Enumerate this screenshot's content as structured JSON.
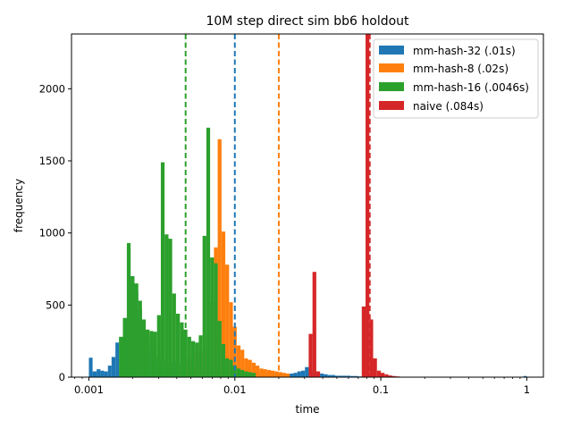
{
  "chart_data": {
    "type": "histogram",
    "title": "10M step direct sim bb6 holdout",
    "xlabel": "time",
    "ylabel": "frequency",
    "xscale": "log",
    "xlim": [
      0.00076,
      1.3
    ],
    "ylim": [
      0,
      2380
    ],
    "x_ticks": [
      {
        "value": 0.001,
        "label": "0.001"
      },
      {
        "value": 0.01,
        "label": "0.01"
      },
      {
        "value": 0.1,
        "label": "0.1"
      },
      {
        "value": 1,
        "label": "1"
      }
    ],
    "y_ticks": [
      {
        "value": 0,
        "label": "0"
      },
      {
        "value": 500,
        "label": "500"
      },
      {
        "value": 1000,
        "label": "1000"
      },
      {
        "value": 1500,
        "label": "1500"
      },
      {
        "value": 2000,
        "label": "2000"
      }
    ],
    "legend_position": "top-right",
    "series": [
      {
        "name": "mm-hash-32 (.01s)",
        "color": "#1f77b4",
        "mean_line": 0.01,
        "bins": [
          [
            0.001,
            0.00106,
            135
          ],
          [
            0.00106,
            0.00113,
            40
          ],
          [
            0.00113,
            0.0012,
            55
          ],
          [
            0.0012,
            0.00127,
            45
          ],
          [
            0.00127,
            0.00135,
            40
          ],
          [
            0.00135,
            0.00143,
            80
          ],
          [
            0.00143,
            0.00152,
            140
          ],
          [
            0.00152,
            0.00161,
            240
          ],
          [
            0.00161,
            0.00171,
            275
          ],
          [
            0.00171,
            0.00182,
            410
          ],
          [
            0.00182,
            0.00193,
            890
          ],
          [
            0.00193,
            0.00205,
            700
          ],
          [
            0.00205,
            0.00218,
            590
          ],
          [
            0.00218,
            0.00231,
            470
          ],
          [
            0.00231,
            0.00245,
            390
          ],
          [
            0.00245,
            0.0026,
            280
          ],
          [
            0.0026,
            0.00276,
            190
          ],
          [
            0.00276,
            0.00293,
            150
          ],
          [
            0.00293,
            0.00311,
            130
          ],
          [
            0.00311,
            0.0033,
            125
          ],
          [
            0.0033,
            0.00351,
            115
          ],
          [
            0.00351,
            0.00372,
            100
          ],
          [
            0.00372,
            0.00395,
            110
          ],
          [
            0.00395,
            0.0042,
            90
          ],
          [
            0.0042,
            0.00446,
            95
          ],
          [
            0.00446,
            0.00473,
            80
          ],
          [
            0.00473,
            0.00502,
            70
          ],
          [
            0.00502,
            0.00533,
            60
          ],
          [
            0.00533,
            0.00566,
            75
          ],
          [
            0.00566,
            0.00601,
            65
          ],
          [
            0.00601,
            0.00638,
            55
          ],
          [
            0.00638,
            0.00677,
            50
          ],
          [
            0.00677,
            0.00719,
            40
          ],
          [
            0.00719,
            0.00763,
            35
          ],
          [
            0.00763,
            0.0081,
            35
          ],
          [
            0.0081,
            0.0086,
            30
          ],
          [
            0.0086,
            0.00913,
            30
          ],
          [
            0.00913,
            0.00969,
            30
          ],
          [
            0.00969,
            0.01029,
            30
          ],
          [
            0.01029,
            0.01093,
            30
          ],
          [
            0.01093,
            0.0116,
            35
          ],
          [
            0.0116,
            0.01231,
            30
          ],
          [
            0.01231,
            0.01307,
            30
          ],
          [
            0.01307,
            0.01388,
            30
          ],
          [
            0.01388,
            0.01473,
            30
          ],
          [
            0.01473,
            0.01564,
            30
          ],
          [
            0.01564,
            0.0166,
            35
          ],
          [
            0.0166,
            0.01763,
            30
          ],
          [
            0.01763,
            0.01871,
            30
          ],
          [
            0.01871,
            0.01987,
            30
          ],
          [
            0.01987,
            0.02109,
            30
          ],
          [
            0.02109,
            0.02239,
            25
          ],
          [
            0.02239,
            0.02377,
            20
          ],
          [
            0.02377,
            0.02524,
            25
          ],
          [
            0.02524,
            0.02679,
            30
          ],
          [
            0.02679,
            0.02844,
            40
          ],
          [
            0.02844,
            0.0302,
            45
          ],
          [
            0.0302,
            0.03206,
            70
          ],
          [
            0.03206,
            0.03404,
            50
          ],
          [
            0.03404,
            0.03613,
            40
          ],
          [
            0.03613,
            0.03836,
            35
          ],
          [
            0.03836,
            0.04072,
            25
          ],
          [
            0.04072,
            0.04323,
            20
          ],
          [
            0.04323,
            0.0459,
            15
          ],
          [
            0.0459,
            0.04873,
            15
          ],
          [
            0.04873,
            0.05173,
            10
          ],
          [
            0.05173,
            0.05492,
            10
          ],
          [
            0.05492,
            0.0583,
            10
          ],
          [
            0.0583,
            0.0619,
            10
          ],
          [
            0.0619,
            0.06571,
            8
          ],
          [
            0.06571,
            0.06976,
            8
          ],
          [
            0.06976,
            0.07406,
            5
          ],
          [
            0.07406,
            0.07862,
            5
          ],
          [
            0.07862,
            0.08347,
            5
          ],
          [
            0.08347,
            0.08861,
            5
          ],
          [
            0.95,
            1.0,
            8
          ]
        ]
      },
      {
        "name": "mm-hash-8 (.02s)",
        "color": "#ff7f0e",
        "mean_line": 0.02,
        "bins": [
          [
            0.0042,
            0.00446,
            60
          ],
          [
            0.00446,
            0.00473,
            100
          ],
          [
            0.00473,
            0.00502,
            130
          ],
          [
            0.00502,
            0.00533,
            160
          ],
          [
            0.00533,
            0.00566,
            170
          ],
          [
            0.00566,
            0.00601,
            180
          ],
          [
            0.00601,
            0.00638,
            190
          ],
          [
            0.00638,
            0.00677,
            250
          ],
          [
            0.00677,
            0.00719,
            520
          ],
          [
            0.00719,
            0.00763,
            900
          ],
          [
            0.00763,
            0.0081,
            1650
          ],
          [
            0.0081,
            0.0086,
            1010
          ],
          [
            0.0086,
            0.00913,
            780
          ],
          [
            0.00913,
            0.00969,
            520
          ],
          [
            0.00969,
            0.01029,
            350
          ],
          [
            0.01029,
            0.01093,
            220
          ],
          [
            0.01093,
            0.0116,
            190
          ],
          [
            0.0116,
            0.01231,
            130
          ],
          [
            0.01231,
            0.01307,
            120
          ],
          [
            0.01307,
            0.01388,
            100
          ],
          [
            0.01388,
            0.01473,
            80
          ],
          [
            0.01473,
            0.01564,
            60
          ],
          [
            0.01564,
            0.0166,
            55
          ],
          [
            0.0166,
            0.01763,
            50
          ],
          [
            0.01763,
            0.01871,
            45
          ],
          [
            0.01871,
            0.01987,
            40
          ],
          [
            0.01987,
            0.02109,
            35
          ],
          [
            0.02109,
            0.02239,
            30
          ],
          [
            0.02239,
            0.02377,
            25
          ]
        ]
      },
      {
        "name": "mm-hash-16 (.0046s)",
        "color": "#2ca02c",
        "mean_line": 0.0046,
        "bins": [
          [
            0.00161,
            0.00171,
            280
          ],
          [
            0.00171,
            0.00182,
            410
          ],
          [
            0.00182,
            0.00193,
            930
          ],
          [
            0.00193,
            0.00205,
            700
          ],
          [
            0.00205,
            0.00218,
            650
          ],
          [
            0.00218,
            0.00231,
            530
          ],
          [
            0.00231,
            0.00245,
            400
          ],
          [
            0.00245,
            0.0026,
            330
          ],
          [
            0.0026,
            0.00276,
            320
          ],
          [
            0.00276,
            0.00293,
            315
          ],
          [
            0.00293,
            0.00311,
            430
          ],
          [
            0.00311,
            0.0033,
            1490
          ],
          [
            0.0033,
            0.00351,
            990
          ],
          [
            0.00351,
            0.00372,
            960
          ],
          [
            0.00372,
            0.00395,
            580
          ],
          [
            0.00395,
            0.0042,
            440
          ],
          [
            0.0042,
            0.00446,
            380
          ],
          [
            0.00446,
            0.00473,
            330
          ],
          [
            0.00473,
            0.00502,
            280
          ],
          [
            0.00502,
            0.00533,
            250
          ],
          [
            0.00533,
            0.00566,
            240
          ],
          [
            0.00566,
            0.00601,
            290
          ],
          [
            0.00601,
            0.00638,
            980
          ],
          [
            0.00638,
            0.00677,
            1730
          ],
          [
            0.00677,
            0.00719,
            830
          ],
          [
            0.00719,
            0.00763,
            790
          ],
          [
            0.00763,
            0.0081,
            390
          ],
          [
            0.0081,
            0.0086,
            230
          ],
          [
            0.0086,
            0.00913,
            130
          ],
          [
            0.00913,
            0.00969,
            120
          ],
          [
            0.00969,
            0.01029,
            80
          ],
          [
            0.01029,
            0.01093,
            60
          ],
          [
            0.01093,
            0.0116,
            50
          ],
          [
            0.0116,
            0.01231,
            40
          ],
          [
            0.01231,
            0.01307,
            35
          ],
          [
            0.01307,
            0.01388,
            30
          ]
        ]
      },
      {
        "name": "naive (.084s)",
        "color": "#d62728",
        "mean_line": 0.084,
        "bins": [
          [
            0.03206,
            0.03404,
            300
          ],
          [
            0.03404,
            0.03613,
            730
          ],
          [
            0.03613,
            0.03836,
            40
          ],
          [
            0.07406,
            0.07862,
            490
          ],
          [
            0.07862,
            0.08347,
            2380
          ],
          [
            0.08347,
            0.08861,
            400
          ],
          [
            0.08861,
            0.09407,
            130
          ],
          [
            0.09407,
            0.09987,
            45
          ],
          [
            0.09987,
            0.10602,
            30
          ],
          [
            0.10602,
            0.11256,
            20
          ],
          [
            0.11256,
            0.11949,
            12
          ],
          [
            0.11949,
            0.12685,
            8
          ],
          [
            0.12685,
            0.13467,
            5
          ]
        ]
      }
    ]
  }
}
